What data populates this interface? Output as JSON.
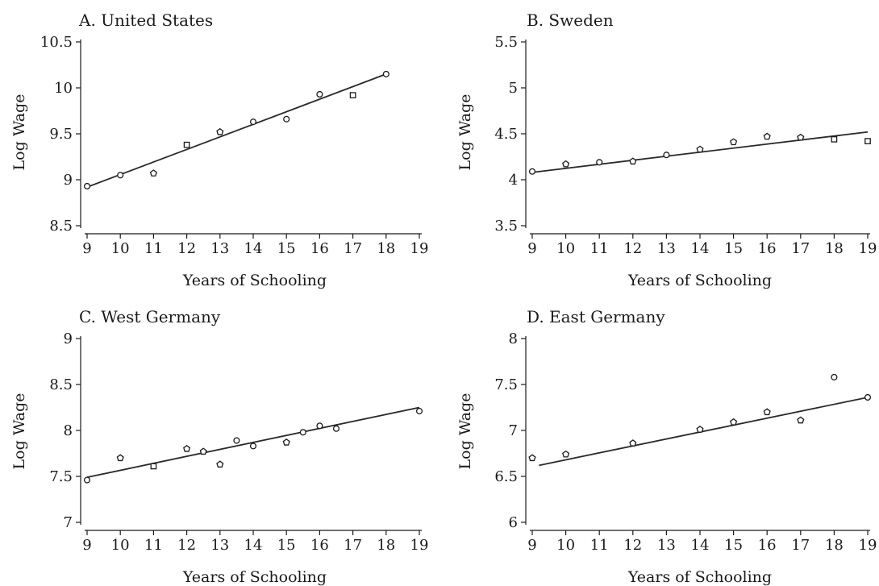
{
  "chart_data": [
    {
      "type": "scatter",
      "title": "A. United States",
      "xlabel": "Years of Schooling",
      "ylabel": "Log Wage",
      "xlim": [
        9,
        19
      ],
      "ylim": [
        8.5,
        10.5
      ],
      "xticks": [
        "9",
        "10",
        "11",
        "12",
        "13",
        "14",
        "15",
        "16",
        "17",
        "18",
        "19"
      ],
      "yticks": [
        "8.5",
        "9",
        "9.5",
        "10",
        "10.5"
      ],
      "points": {
        "x": [
          9,
          10,
          11,
          12,
          13,
          14,
          15,
          16,
          17,
          18
        ],
        "y": [
          8.93,
          9.05,
          9.07,
          9.38,
          9.52,
          9.63,
          9.66,
          9.93,
          9.92,
          10.15
        ]
      },
      "markers": [
        "circle",
        "circle",
        "pentagon",
        "square",
        "pentagon",
        "circle",
        "circle",
        "circle",
        "square",
        "circle"
      ],
      "fit_line": {
        "x": [
          9,
          18
        ],
        "y": [
          8.92,
          10.15
        ]
      }
    },
    {
      "type": "scatter",
      "title": "B. Sweden",
      "xlabel": "Years of Schooling",
      "ylabel": "Log Wage",
      "xlim": [
        9,
        19
      ],
      "ylim": [
        3.5,
        5.5
      ],
      "xticks": [
        "9",
        "10",
        "11",
        "12",
        "13",
        "14",
        "15",
        "16",
        "17",
        "18",
        "19"
      ],
      "yticks": [
        "3.5",
        "4",
        "4.5",
        "5",
        "5.5"
      ],
      "points": {
        "x": [
          9,
          10,
          11,
          12,
          13,
          14,
          15,
          16,
          17,
          18,
          19
        ],
        "y": [
          4.09,
          4.17,
          4.19,
          4.2,
          4.27,
          4.33,
          4.41,
          4.47,
          4.46,
          4.44,
          4.42
        ]
      },
      "markers": [
        "circle",
        "pentagon",
        "circle",
        "pentagon",
        "circle",
        "pentagon",
        "pentagon",
        "pentagon",
        "pentagon",
        "square",
        "square"
      ],
      "fit_line": {
        "x": [
          9,
          19
        ],
        "y": [
          4.08,
          4.52
        ]
      }
    },
    {
      "type": "scatter",
      "title": "C. West Germany",
      "xlabel": "Years of Schooling",
      "ylabel": "Log Wage",
      "xlim": [
        9,
        19
      ],
      "ylim": [
        7,
        9
      ],
      "xticks": [
        "9",
        "10",
        "11",
        "12",
        "13",
        "14",
        "15",
        "16",
        "17",
        "18",
        "19"
      ],
      "yticks": [
        "7",
        "7.5",
        "8",
        "8.5",
        "9"
      ],
      "points": {
        "x": [
          9,
          10,
          11,
          12,
          12.5,
          13,
          13.5,
          14,
          15,
          15.5,
          16,
          16.5,
          19
        ],
        "y": [
          7.46,
          7.7,
          7.61,
          7.8,
          7.77,
          7.63,
          7.89,
          7.83,
          7.87,
          7.98,
          8.05,
          8.02,
          8.21
        ]
      },
      "markers": [
        "circle",
        "pentagon",
        "square",
        "pentagon",
        "pentagon",
        "pentagon",
        "circle",
        "circle",
        "pentagon",
        "circle",
        "circle",
        "circle",
        "circle"
      ],
      "fit_line": {
        "x": [
          9,
          19
        ],
        "y": [
          7.49,
          8.25
        ]
      }
    },
    {
      "type": "scatter",
      "title": "D. East Germany",
      "xlabel": "Years of Schooling",
      "ylabel": "Log Wage",
      "xlim": [
        9,
        19
      ],
      "ylim": [
        6,
        8
      ],
      "xticks": [
        "9",
        "10",
        "11",
        "12",
        "13",
        "14",
        "15",
        "16",
        "17",
        "18",
        "19"
      ],
      "yticks": [
        "6",
        "6.5",
        "7",
        "7.5",
        "8"
      ],
      "points": {
        "x": [
          9,
          10,
          12,
          14,
          15,
          16,
          17,
          18,
          19
        ],
        "y": [
          6.7,
          6.74,
          6.86,
          7.01,
          7.09,
          7.2,
          7.11,
          7.58,
          7.36
        ]
      },
      "markers": [
        "pentagon",
        "pentagon",
        "pentagon",
        "pentagon",
        "pentagon",
        "pentagon",
        "pentagon",
        "circle",
        "circle"
      ],
      "fit_line": {
        "x": [
          9.2,
          19
        ],
        "y": [
          6.62,
          7.36
        ]
      }
    }
  ]
}
